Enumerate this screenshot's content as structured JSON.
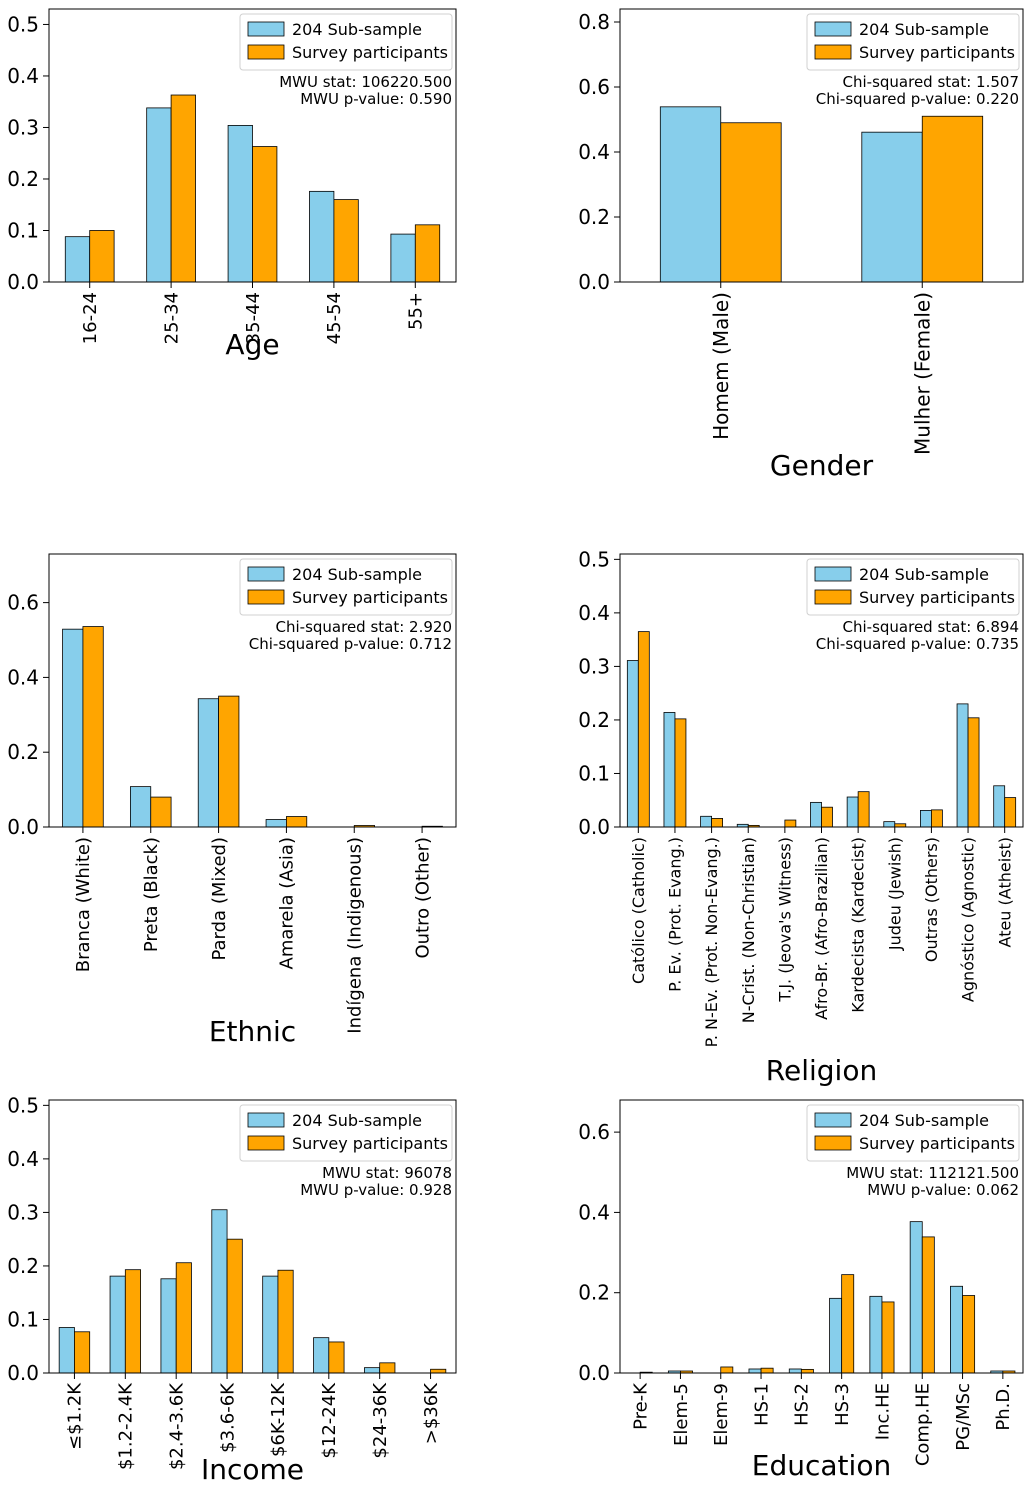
{
  "colors": {
    "sub": "#87CEEB",
    "survey": "#FFA500",
    "edge": "#000000"
  },
  "legend": [
    "204 Sub-sample",
    "Survey participants"
  ],
  "chart_data": [
    {
      "type": "bar",
      "xlabel": "Age",
      "ylim": [
        0,
        0.53
      ],
      "yticks": [
        "0.0",
        "0.1",
        "0.2",
        "0.3",
        "0.4",
        "0.5"
      ],
      "categories": [
        "16-24",
        "25-34",
        "35-44",
        "45-54",
        "55+"
      ],
      "series": [
        {
          "name": "204 Sub-sample",
          "values": [
            0.088,
            0.338,
            0.304,
            0.176,
            0.093
          ]
        },
        {
          "name": "Survey participants",
          "values": [
            0.1,
            0.363,
            0.263,
            0.16,
            0.111
          ]
        }
      ],
      "stats": [
        "MWU stat: 106220.500",
        "MWU p-value: 0.590"
      ],
      "legend_position": "top-right"
    },
    {
      "type": "bar",
      "xlabel": "Gender",
      "ylim": [
        0,
        0.84
      ],
      "yticks": [
        "0.0",
        "0.2",
        "0.4",
        "0.6",
        "0.8"
      ],
      "categories": [
        "Homem (Male)",
        "Mulher (Female)"
      ],
      "series": [
        {
          "name": "204 Sub-sample",
          "values": [
            0.539,
            0.461
          ]
        },
        {
          "name": "Survey participants",
          "values": [
            0.49,
            0.51
          ]
        }
      ],
      "stats": [
        "Chi-squared stat: 1.507",
        "Chi-squared p-value: 0.220"
      ],
      "legend_position": "top-right"
    },
    {
      "type": "bar",
      "xlabel": "Ethnic",
      "ylim": [
        0,
        0.73
      ],
      "yticks": [
        "0.0",
        "0.2",
        "0.4",
        "0.6"
      ],
      "categories": [
        "Branca (White)",
        "Preta (Black)",
        "Parda (Mixed)",
        "Amarela (Asia)",
        "Indígena (Indigenous)",
        "Outro (Other)"
      ],
      "series": [
        {
          "name": "204 Sub-sample",
          "values": [
            0.529,
            0.108,
            0.343,
            0.02,
            0.0,
            0.0
          ]
        },
        {
          "name": "Survey participants",
          "values": [
            0.536,
            0.08,
            0.35,
            0.028,
            0.004,
            0.002
          ]
        }
      ],
      "stats": [
        "Chi-squared stat: 2.920",
        "Chi-squared p-value: 0.712"
      ],
      "legend_position": "top-right"
    },
    {
      "type": "bar",
      "xlabel": "Religion",
      "ylim": [
        0,
        0.51
      ],
      "yticks": [
        "0.0",
        "0.1",
        "0.2",
        "0.3",
        "0.4",
        "0.5"
      ],
      "categories": [
        "Católico (Catholic)",
        "P. Ev. (Prot. Evang.)",
        "P. N-Ev. (Prot. Non-Evang.)",
        "N-Crist. (Non-Christian)",
        "T.J. (Jeova's Witness)",
        "Afro-Br. (Afro-Brazilian)",
        "Kardecista (Kardecist)",
        "Judeu (Jewish)",
        "Outras (Others)",
        "Agnóstico (Agnostic)",
        "Ateu (Atheist)"
      ],
      "series": [
        {
          "name": "204 Sub-sample",
          "values": [
            0.311,
            0.214,
            0.02,
            0.005,
            0.0,
            0.046,
            0.056,
            0.01,
            0.031,
            0.23,
            0.077
          ]
        },
        {
          "name": "Survey participants",
          "values": [
            0.365,
            0.202,
            0.016,
            0.003,
            0.013,
            0.037,
            0.066,
            0.006,
            0.032,
            0.204,
            0.055
          ]
        }
      ],
      "stats": [
        "Chi-squared stat: 6.894",
        "Chi-squared p-value: 0.735"
      ],
      "legend_position": "top-right"
    },
    {
      "type": "bar",
      "xlabel": "Income",
      "ylim": [
        0,
        0.51
      ],
      "yticks": [
        "0.0",
        "0.1",
        "0.2",
        "0.3",
        "0.4",
        "0.5"
      ],
      "categories": [
        "≤$1.2K",
        "$1.2-2.4K",
        "$2.4-3.6K",
        "$3.6-6K",
        "$6K-12K",
        "$12-24K",
        "$24-36K",
        ">$36K"
      ],
      "series": [
        {
          "name": "204 Sub-sample",
          "values": [
            0.085,
            0.181,
            0.176,
            0.305,
            0.181,
            0.066,
            0.01,
            0.0
          ]
        },
        {
          "name": "Survey participants",
          "values": [
            0.077,
            0.193,
            0.206,
            0.25,
            0.192,
            0.058,
            0.019,
            0.007
          ]
        }
      ],
      "stats": [
        "MWU stat: 96078",
        "MWU p-value: 0.928"
      ],
      "legend_position": "top-right"
    },
    {
      "type": "bar",
      "xlabel": "Education",
      "ylim": [
        0,
        0.68
      ],
      "yticks": [
        "0.0",
        "0.2",
        "0.4",
        "0.6"
      ],
      "categories": [
        "Pre-K",
        "Elem-5",
        "Elem-9",
        "HS-1",
        "HS-2",
        "HS-3",
        "Inc.HE",
        "Comp.HE",
        "PG/MSc",
        "Ph.D."
      ],
      "series": [
        {
          "name": "204 Sub-sample",
          "values": [
            0.0,
            0.005,
            0.0,
            0.01,
            0.01,
            0.186,
            0.191,
            0.377,
            0.216,
            0.005
          ]
        },
        {
          "name": "Survey participants",
          "values": [
            0.002,
            0.005,
            0.015,
            0.012,
            0.009,
            0.245,
            0.177,
            0.339,
            0.193,
            0.005
          ]
        }
      ],
      "stats": [
        "MWU stat: 112121.500",
        "MWU p-value: 0.062"
      ],
      "legend_position": "top-right"
    }
  ]
}
